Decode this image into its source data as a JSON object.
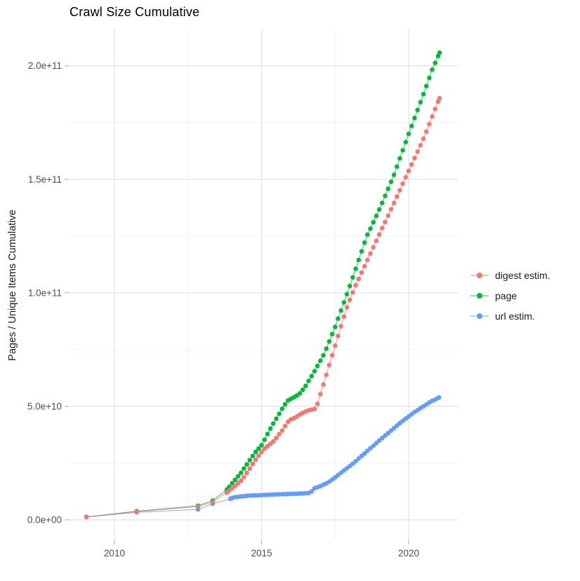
{
  "chart_data": {
    "type": "scatter",
    "title": "Crawl Size Cumulative",
    "xlabel": "",
    "ylabel": "Pages / Unique Items Cumulative",
    "value_unit": "points are [year, billions (1e9)] of pages / unique items cumulative",
    "xlim": [
      2008.45,
      2021.67
    ],
    "ylim_billions": [
      -9,
      216
    ],
    "grid": true,
    "legend_position": "right-center",
    "x_ticks": [
      {
        "value": 2010,
        "label": "2010"
      },
      {
        "value": 2015,
        "label": "2015"
      },
      {
        "value": 2020,
        "label": "2020"
      }
    ],
    "x_minor_ticks": [
      2012.5,
      2017.5
    ],
    "y_ticks": [
      {
        "value_billions": 0,
        "label": "0.0e+00"
      },
      {
        "value_billions": 50,
        "label": "5.0e+10"
      },
      {
        "value_billions": 100,
        "label": "1.0e+11"
      },
      {
        "value_billions": 150,
        "label": "1.5e+11"
      },
      {
        "value_billions": 200,
        "label": "2.0e+11"
      }
    ],
    "y_minor_ticks_billions": [
      25,
      75,
      125,
      175
    ],
    "series": [
      {
        "name": "digest estim.",
        "color": "#F8766D",
        "points_year_billions": [
          [
            2009.05,
            1.3
          ],
          [
            2010.76,
            3.6
          ],
          [
            2012.84,
            5.8
          ],
          [
            2013.34,
            7.8
          ],
          [
            2013.82,
            12.0
          ],
          [
            2013.9,
            12.9
          ],
          [
            2014.0,
            13.9
          ],
          [
            2014.1,
            15.0
          ],
          [
            2014.2,
            16.1
          ],
          [
            2014.3,
            17.2
          ],
          [
            2014.4,
            18.8
          ],
          [
            2014.5,
            20.7
          ],
          [
            2014.6,
            22.6
          ],
          [
            2014.7,
            24.6
          ],
          [
            2014.8,
            26.5
          ],
          [
            2014.9,
            28.3
          ],
          [
            2015.0,
            29.9
          ],
          [
            2015.1,
            31.4
          ],
          [
            2015.2,
            32.4
          ],
          [
            2015.3,
            33.5
          ],
          [
            2015.4,
            34.5
          ],
          [
            2015.5,
            36.0
          ],
          [
            2015.6,
            37.7
          ],
          [
            2015.7,
            39.3
          ],
          [
            2015.8,
            41.3
          ],
          [
            2015.9,
            43.2
          ],
          [
            2016.0,
            44.3
          ],
          [
            2016.1,
            44.8
          ],
          [
            2016.2,
            45.5
          ],
          [
            2016.3,
            46.4
          ],
          [
            2016.4,
            47.1
          ],
          [
            2016.5,
            47.7
          ],
          [
            2016.6,
            48.2
          ],
          [
            2016.7,
            48.5
          ],
          [
            2016.8,
            48.8
          ],
          [
            2016.9,
            51.1
          ],
          [
            2017.0,
            55.4
          ],
          [
            2017.1,
            59.6
          ],
          [
            2017.2,
            63.9
          ],
          [
            2017.3,
            68.2
          ],
          [
            2017.4,
            72.5
          ],
          [
            2017.5,
            76.7
          ],
          [
            2017.6,
            81.0
          ],
          [
            2017.7,
            85.3
          ],
          [
            2017.8,
            89.5
          ],
          [
            2017.9,
            93.6
          ],
          [
            2018.0,
            96.9
          ],
          [
            2018.1,
            100.2
          ],
          [
            2018.2,
            103.3
          ],
          [
            2018.3,
            106.1
          ],
          [
            2018.4,
            108.9
          ],
          [
            2018.5,
            111.7
          ],
          [
            2018.6,
            114.5
          ],
          [
            2018.7,
            117.3
          ],
          [
            2018.8,
            120.1
          ],
          [
            2018.9,
            122.9
          ],
          [
            2019.0,
            125.7
          ],
          [
            2019.1,
            128.5
          ],
          [
            2019.2,
            131.2
          ],
          [
            2019.3,
            134.0
          ],
          [
            2019.4,
            136.8
          ],
          [
            2019.5,
            139.6
          ],
          [
            2019.6,
            142.4
          ],
          [
            2019.7,
            145.2
          ],
          [
            2019.8,
            148.1
          ],
          [
            2019.9,
            150.9
          ],
          [
            2020.0,
            153.7
          ],
          [
            2020.1,
            156.5
          ],
          [
            2020.2,
            159.4
          ],
          [
            2020.3,
            162.2
          ],
          [
            2020.4,
            165.0
          ],
          [
            2020.5,
            167.9
          ],
          [
            2020.6,
            171.0
          ],
          [
            2020.7,
            174.3
          ],
          [
            2020.8,
            177.7
          ],
          [
            2020.9,
            181.0
          ],
          [
            2021.0,
            184.2
          ],
          [
            2021.05,
            185.7
          ]
        ]
      },
      {
        "name": "page",
        "color": "#00BA38",
        "points_year_billions": [
          [
            2009.05,
            1.3
          ],
          [
            2010.76,
            3.8
          ],
          [
            2012.84,
            6.2
          ],
          [
            2013.34,
            8.5
          ],
          [
            2013.82,
            13.3
          ],
          [
            2013.9,
            14.5
          ],
          [
            2014.0,
            16.1
          ],
          [
            2014.1,
            17.6
          ],
          [
            2014.2,
            19.2
          ],
          [
            2014.3,
            20.7
          ],
          [
            2014.4,
            22.6
          ],
          [
            2014.5,
            24.4
          ],
          [
            2014.6,
            26.3
          ],
          [
            2014.7,
            28.1
          ],
          [
            2014.8,
            29.9
          ],
          [
            2014.9,
            31.4
          ],
          [
            2015.0,
            32.9
          ],
          [
            2015.1,
            35.3
          ],
          [
            2015.2,
            37.8
          ],
          [
            2015.3,
            40.2
          ],
          [
            2015.4,
            42.4
          ],
          [
            2015.5,
            44.5
          ],
          [
            2015.6,
            46.7
          ],
          [
            2015.7,
            48.9
          ],
          [
            2015.8,
            50.9
          ],
          [
            2015.9,
            52.6
          ],
          [
            2016.0,
            53.3
          ],
          [
            2016.1,
            54.0
          ],
          [
            2016.2,
            54.8
          ],
          [
            2016.3,
            55.7
          ],
          [
            2016.4,
            57.3
          ],
          [
            2016.5,
            59.0
          ],
          [
            2016.6,
            61.2
          ],
          [
            2016.7,
            63.3
          ],
          [
            2016.8,
            65.5
          ],
          [
            2016.9,
            67.8
          ],
          [
            2017.0,
            70.1
          ],
          [
            2017.1,
            72.5
          ],
          [
            2017.2,
            75.4
          ],
          [
            2017.3,
            78.6
          ],
          [
            2017.4,
            81.8
          ],
          [
            2017.5,
            85.0
          ],
          [
            2017.6,
            88.6
          ],
          [
            2017.7,
            92.2
          ],
          [
            2017.8,
            95.8
          ],
          [
            2017.9,
            99.4
          ],
          [
            2018.0,
            103.0
          ],
          [
            2018.1,
            106.8
          ],
          [
            2018.2,
            110.6
          ],
          [
            2018.3,
            114.5
          ],
          [
            2018.4,
            118.3
          ],
          [
            2018.5,
            122.1
          ],
          [
            2018.6,
            125.6
          ],
          [
            2018.7,
            128.3
          ],
          [
            2018.8,
            131.1
          ],
          [
            2018.9,
            133.9
          ],
          [
            2019.0,
            136.7
          ],
          [
            2019.1,
            139.6
          ],
          [
            2019.2,
            142.7
          ],
          [
            2019.3,
            145.8
          ],
          [
            2019.4,
            148.9
          ],
          [
            2019.5,
            152.0
          ],
          [
            2019.6,
            155.6
          ],
          [
            2019.7,
            159.2
          ],
          [
            2019.8,
            162.8
          ],
          [
            2019.9,
            166.4
          ],
          [
            2020.0,
            170.0
          ],
          [
            2020.1,
            173.5
          ],
          [
            2020.2,
            177.0
          ],
          [
            2020.3,
            180.5
          ],
          [
            2020.4,
            184.0
          ],
          [
            2020.5,
            187.5
          ],
          [
            2020.6,
            191.1
          ],
          [
            2020.7,
            194.7
          ],
          [
            2020.8,
            198.3
          ],
          [
            2020.9,
            201.3
          ],
          [
            2021.0,
            204.3
          ],
          [
            2021.05,
            205.8
          ]
        ]
      },
      {
        "name": "url estim.",
        "color": "#619CFF",
        "points_year_billions": [
          [
            2009.05,
            1.2
          ],
          [
            2010.76,
            3.3
          ],
          [
            2012.84,
            4.6
          ],
          [
            2013.34,
            7.1
          ],
          [
            2013.94,
            9.3
          ],
          [
            2014.0,
            9.6
          ],
          [
            2014.1,
            10.0
          ],
          [
            2014.2,
            10.1
          ],
          [
            2014.3,
            10.3
          ],
          [
            2014.4,
            10.4
          ],
          [
            2014.5,
            10.6
          ],
          [
            2014.6,
            10.7
          ],
          [
            2014.7,
            10.7
          ],
          [
            2014.8,
            10.8
          ],
          [
            2014.9,
            10.8
          ],
          [
            2015.0,
            10.9
          ],
          [
            2015.1,
            11.0
          ],
          [
            2015.2,
            11.0
          ],
          [
            2015.3,
            11.1
          ],
          [
            2015.4,
            11.1
          ],
          [
            2015.5,
            11.2
          ],
          [
            2015.6,
            11.2
          ],
          [
            2015.7,
            11.3
          ],
          [
            2015.8,
            11.3
          ],
          [
            2015.9,
            11.4
          ],
          [
            2016.0,
            11.4
          ],
          [
            2016.1,
            11.5
          ],
          [
            2016.2,
            11.5
          ],
          [
            2016.3,
            11.6
          ],
          [
            2016.4,
            11.6
          ],
          [
            2016.5,
            11.7
          ],
          [
            2016.6,
            11.8
          ],
          [
            2016.7,
            12.5
          ],
          [
            2016.8,
            13.9
          ],
          [
            2016.9,
            14.4
          ],
          [
            2017.0,
            14.8
          ],
          [
            2017.1,
            15.5
          ],
          [
            2017.2,
            16.1
          ],
          [
            2017.3,
            16.8
          ],
          [
            2017.4,
            17.7
          ],
          [
            2017.5,
            18.7
          ],
          [
            2017.6,
            19.7
          ],
          [
            2017.7,
            20.7
          ],
          [
            2017.8,
            21.7
          ],
          [
            2017.9,
            22.7
          ],
          [
            2018.0,
            23.7
          ],
          [
            2018.1,
            24.7
          ],
          [
            2018.2,
            25.8
          ],
          [
            2018.3,
            27.0
          ],
          [
            2018.4,
            28.1
          ],
          [
            2018.5,
            29.2
          ],
          [
            2018.6,
            30.4
          ],
          [
            2018.7,
            31.5
          ],
          [
            2018.8,
            32.6
          ],
          [
            2018.9,
            33.8
          ],
          [
            2019.0,
            34.9
          ],
          [
            2019.1,
            36.0
          ],
          [
            2019.2,
            37.1
          ],
          [
            2019.3,
            38.2
          ],
          [
            2019.4,
            39.3
          ],
          [
            2019.5,
            40.4
          ],
          [
            2019.6,
            41.5
          ],
          [
            2019.7,
            42.6
          ],
          [
            2019.8,
            43.6
          ],
          [
            2019.9,
            44.6
          ],
          [
            2020.0,
            45.5
          ],
          [
            2020.1,
            46.5
          ],
          [
            2020.2,
            47.5
          ],
          [
            2020.3,
            48.3
          ],
          [
            2020.4,
            49.2
          ],
          [
            2020.5,
            50.0
          ],
          [
            2020.6,
            50.8
          ],
          [
            2020.7,
            51.7
          ],
          [
            2020.8,
            52.4
          ],
          [
            2020.9,
            53.0
          ],
          [
            2021.0,
            53.7
          ],
          [
            2021.03,
            53.9
          ]
        ]
      }
    ]
  },
  "colors": {
    "background": "#FFFFFF",
    "grid_major": "#E4E4E4",
    "grid_minor": "#F2F2F2",
    "tick_mark": "#B8B8B8",
    "tick_label": "#4D4D4D",
    "title_text": "#000000",
    "axis_title_text": "#1A1A1A",
    "legend_text": "#1A1A1A"
  }
}
